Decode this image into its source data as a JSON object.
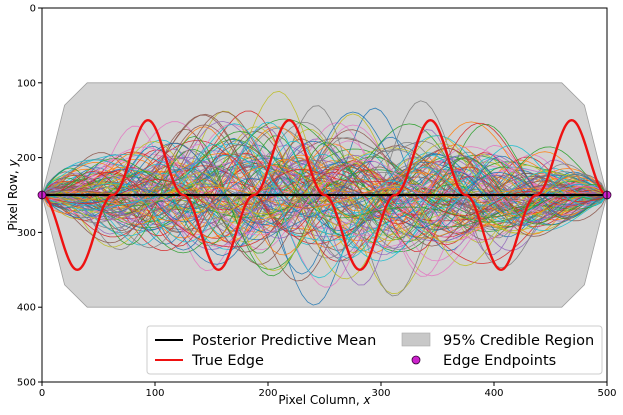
{
  "chart_data": {
    "type": "line",
    "title": "",
    "xlabel_main": "Pixel Column, ",
    "xlabel_var": "x",
    "ylabel_main": "Pixel Row, ",
    "ylabel_var": "y",
    "xlim": [
      0,
      500
    ],
    "ylim": [
      500,
      0
    ],
    "y_inverted": true,
    "xticks": [
      "0",
      "100",
      "200",
      "300",
      "400",
      "500"
    ],
    "yticks": [
      "0",
      "100",
      "200",
      "300",
      "400",
      "500"
    ],
    "grid": false,
    "legend_position": "lower-right",
    "series": [
      {
        "name": "Posterior Predictive Mean",
        "color": "#000000",
        "x": [
          0,
          100,
          200,
          300,
          400,
          500
        ],
        "y": [
          250,
          250,
          250,
          250,
          250,
          250
        ]
      },
      {
        "name": "True Edge",
        "color": "#ee1111",
        "x": [
          0,
          31.25,
          62.5,
          93.75,
          125,
          156.25,
          187.5,
          218.75,
          250,
          281.25,
          312.5,
          343.75,
          375,
          406.25,
          437.5,
          468.75,
          500
        ],
        "y": [
          250,
          350,
          250,
          150,
          250,
          350,
          250,
          150,
          250,
          350,
          250,
          150,
          250,
          350,
          250,
          150,
          250
        ]
      },
      {
        "name": "95% Credible Region",
        "color": "#c8c8c8",
        "x": [
          0,
          20,
          40,
          460,
          480,
          500
        ],
        "lower": [
          250,
          130,
          100,
          100,
          130,
          250
        ],
        "upper": [
          250,
          370,
          400,
          400,
          370,
          250
        ]
      },
      {
        "name": "Edge Endpoints",
        "color": "#cc22cc",
        "x": [
          0,
          500
        ],
        "y": [
          250,
          250
        ]
      }
    ],
    "posterior_samples_note_colors": [
      "#1f77b4",
      "#ff7f0e",
      "#2ca02c",
      "#d62728",
      "#9467bd",
      "#8c564b",
      "#e377c2",
      "#7f7f7f",
      "#bcbd22",
      "#17becf"
    ]
  },
  "legend": {
    "items": [
      {
        "label": "Posterior Predictive Mean"
      },
      {
        "label": "95% Credible Region"
      },
      {
        "label": "True Edge"
      },
      {
        "label": "Edge Endpoints"
      }
    ]
  }
}
